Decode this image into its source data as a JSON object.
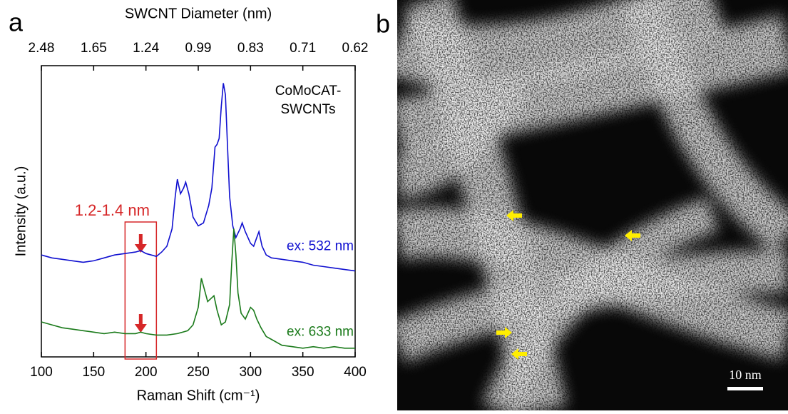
{
  "chart_data": {
    "type": "line",
    "panel_label": "a",
    "title": "SWCNT Diameter (nm)",
    "xlabel": "Raman Shift (cm⁻¹)",
    "ylabel": "Intensity (a.u.)",
    "annotation": "CoMoCAT-\nSWCNTs",
    "xlim": [
      100,
      400
    ],
    "xticks": [
      100,
      150,
      200,
      250,
      300,
      350,
      400
    ],
    "x2ticks": [
      {
        "value": 100,
        "label": "2.48"
      },
      {
        "value": 150,
        "label": "1.65"
      },
      {
        "value": 200,
        "label": "1.24"
      },
      {
        "value": 250,
        "label": "0.99"
      },
      {
        "value": 300,
        "label": "0.83"
      },
      {
        "value": 350,
        "label": "0.71"
      },
      {
        "value": 400,
        "label": "0.62"
      }
    ],
    "ylim": [
      0,
      100
    ],
    "highlight": {
      "xlim": [
        180,
        210
      ],
      "label": "1.2-1.4 nm",
      "color": "#d62728"
    },
    "series": [
      {
        "name": "ex: 532 nm",
        "color": "#1010d0",
        "x": [
          100,
          110,
          120,
          130,
          140,
          150,
          160,
          170,
          180,
          190,
          195,
          200,
          210,
          215,
          220,
          225,
          228,
          230,
          233,
          236,
          238,
          241,
          245,
          250,
          255,
          260,
          263,
          266,
          268,
          270,
          272,
          274,
          276,
          278,
          280,
          283,
          286,
          290,
          292,
          295,
          300,
          303,
          306,
          308,
          311,
          315,
          320,
          330,
          340,
          350,
          360,
          370,
          380,
          390,
          400
        ],
        "values": [
          35,
          34,
          33.5,
          33,
          32.5,
          33,
          34,
          35,
          35.5,
          36,
          36.5,
          35.5,
          34.5,
          36,
          38,
          44,
          55,
          61,
          56,
          58,
          60,
          56,
          48,
          45,
          46,
          52,
          58,
          72,
          73,
          75,
          86,
          94,
          90,
          72,
          55,
          45,
          41,
          44,
          46,
          43,
          39,
          38,
          41,
          43,
          38,
          35,
          34,
          33.5,
          33,
          32.5,
          31.5,
          31,
          30.5,
          30,
          29.5
        ]
      },
      {
        "name": "ex: 633 nm",
        "color": "#1a7a1a",
        "x": [
          100,
          110,
          120,
          130,
          140,
          150,
          160,
          170,
          180,
          190,
          195,
          200,
          210,
          220,
          230,
          240,
          245,
          250,
          253,
          256,
          259,
          262,
          265,
          268,
          272,
          276,
          280,
          282,
          284,
          286,
          288,
          291,
          295,
          300,
          303,
          306,
          310,
          315,
          320,
          330,
          340,
          350,
          360,
          370,
          380,
          390,
          400
        ],
        "values": [
          12,
          11,
          10,
          9.5,
          9,
          8.5,
          8,
          8.5,
          8,
          8,
          8.5,
          8,
          7.5,
          7.5,
          8,
          9,
          11,
          17,
          27,
          23,
          19,
          20,
          21,
          16,
          11,
          12,
          18,
          32,
          44,
          35,
          22,
          15,
          13,
          17,
          16,
          13,
          10,
          7,
          6,
          4,
          3.5,
          3,
          3.5,
          3,
          3.5,
          3,
          3
        ]
      }
    ]
  },
  "panel_b": {
    "label": "b",
    "scale_bar": "10 nm"
  }
}
